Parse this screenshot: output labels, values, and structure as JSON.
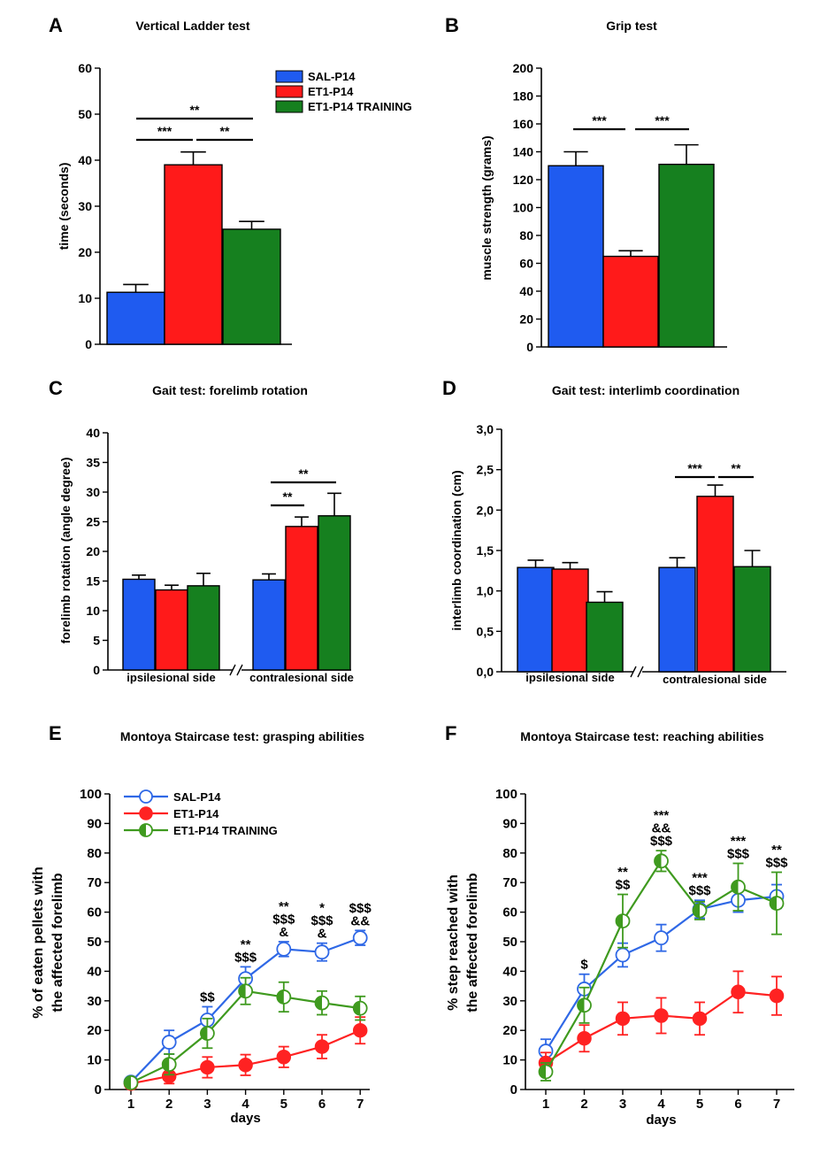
{
  "colors": {
    "sal": "#1f5bf0",
    "et1": "#ff1a1a",
    "training": "#16801f",
    "line_blue": "#2f68e6",
    "line_red": "#ff2222",
    "line_green": "#3f9a1f"
  },
  "legend_labels": [
    "SAL-P14",
    "ET1-P14",
    "ET1-P14 TRAINING"
  ],
  "chart_data": [
    {
      "id": "A",
      "panel_label": "A",
      "type": "bar",
      "title": "Vertical Ladder test",
      "ylabel": "time (seconds)",
      "ylim": [
        0,
        60
      ],
      "yticks": [
        "0",
        "10",
        "20",
        "30",
        "40",
        "50",
        "60"
      ],
      "series": [
        {
          "name": "SAL-P14",
          "values": [
            11.3
          ],
          "errors": [
            1.7
          ]
        },
        {
          "name": "ET1-P14",
          "values": [
            39
          ],
          "errors": [
            2.8
          ]
        },
        {
          "name": "ET1-P14 TRAINING",
          "values": [
            25
          ],
          "errors": [
            1.7
          ]
        }
      ],
      "significance": [
        {
          "between": [
            "SAL-P14",
            "ET1-P14"
          ],
          "label": "***"
        },
        {
          "between": [
            "ET1-P14",
            "ET1-P14 TRAINING"
          ],
          "label": "**"
        },
        {
          "between": [
            "SAL-P14",
            "ET1-P14 TRAINING"
          ],
          "label": "**"
        }
      ]
    },
    {
      "id": "B",
      "panel_label": "B",
      "type": "bar",
      "title": "Grip test",
      "ylabel": "muscle strength (grams)",
      "ylim": [
        0,
        200
      ],
      "yticks": [
        "0",
        "20",
        "40",
        "60",
        "80",
        "100",
        "120",
        "140",
        "160",
        "180",
        "200"
      ],
      "series": [
        {
          "name": "SAL-P14",
          "values": [
            130
          ],
          "errors": [
            10
          ]
        },
        {
          "name": "ET1-P14",
          "values": [
            65
          ],
          "errors": [
            4
          ]
        },
        {
          "name": "ET1-P14 TRAINING",
          "values": [
            131
          ],
          "errors": [
            14
          ]
        }
      ],
      "significance": [
        {
          "between": [
            "SAL-P14",
            "ET1-P14"
          ],
          "label": "***"
        },
        {
          "between": [
            "ET1-P14",
            "ET1-P14 TRAINING"
          ],
          "label": "***"
        }
      ]
    },
    {
      "id": "C",
      "panel_label": "C",
      "type": "bar",
      "title": "Gait test: forelimb rotation",
      "ylabel": "forelimb rotation (angle degree)",
      "ylim": [
        0,
        40
      ],
      "yticks": [
        "0",
        "5",
        "10",
        "15",
        "20",
        "25",
        "30",
        "35",
        "40"
      ],
      "categories": [
        "ipsilesional side",
        "contralesional side"
      ],
      "series": [
        {
          "name": "SAL-P14",
          "values": [
            15.3,
            15.2
          ],
          "errors": [
            0.7,
            1.0
          ]
        },
        {
          "name": "ET1-P14",
          "values": [
            13.5,
            24.2
          ],
          "errors": [
            0.8,
            1.6
          ]
        },
        {
          "name": "ET1-P14 TRAINING",
          "values": [
            14.2,
            26
          ],
          "errors": [
            2.1,
            3.8
          ]
        }
      ],
      "significance": [
        {
          "group": "contralesional side",
          "between": [
            "SAL-P14",
            "ET1-P14"
          ],
          "label": "**"
        },
        {
          "group": "contralesional side",
          "between": [
            "SAL-P14",
            "ET1-P14 TRAINING"
          ],
          "label": "**"
        }
      ]
    },
    {
      "id": "D",
      "panel_label": "D",
      "type": "bar",
      "title": "Gait test: interlimb coordination",
      "ylabel": "interlimb coordination (cm)",
      "ylim": [
        0,
        3
      ],
      "yticks": [
        "0,0",
        "0,5",
        "1,0",
        "1,5",
        "2,0",
        "2,5",
        "3,0"
      ],
      "categories": [
        "ipsilesional side",
        "contralesional side"
      ],
      "series": [
        {
          "name": "SAL-P14",
          "values": [
            1.29,
            1.29
          ],
          "errors": [
            0.09,
            0.12
          ]
        },
        {
          "name": "ET1-P14",
          "values": [
            1.27,
            2.17
          ],
          "errors": [
            0.08,
            0.14
          ]
        },
        {
          "name": "ET1-P14 TRAINING",
          "values": [
            0.86,
            1.3
          ],
          "errors": [
            0.13,
            0.2
          ]
        }
      ],
      "significance": [
        {
          "group": "contralesional side",
          "between": [
            "SAL-P14",
            "ET1-P14"
          ],
          "label": "***"
        },
        {
          "group": "contralesional side",
          "between": [
            "ET1-P14",
            "ET1-P14 TRAINING"
          ],
          "label": "**"
        }
      ]
    },
    {
      "id": "E",
      "panel_label": "E",
      "type": "line",
      "title": "Montoya Staircase test: grasping abilities",
      "xlabel": "days",
      "ylabel": "% of eaten pellets with the affected forelimb",
      "ylabel_lines": [
        "% of eaten pellets with",
        "the affected forelimb"
      ],
      "x": [
        1,
        2,
        3,
        4,
        5,
        6,
        7
      ],
      "xticks": [
        "1",
        "2",
        "3",
        "4",
        "5",
        "6",
        "7"
      ],
      "ylim": [
        0,
        100
      ],
      "yticks": [
        "0",
        "10",
        "20",
        "30",
        "40",
        "50",
        "60",
        "70",
        "80",
        "90",
        "100"
      ],
      "series": [
        {
          "name": "SAL-P14",
          "values": [
            2.5,
            16,
            23.5,
            37.5,
            47.5,
            46.5,
            51.3
          ],
          "errors": [
            1.0,
            4.0,
            4.5,
            4.0,
            2.5,
            3.0,
            2.5
          ]
        },
        {
          "name": "ET1-P14",
          "values": [
            2,
            4.5,
            7.5,
            8.3,
            11,
            14.5,
            20
          ],
          "errors": [
            1.0,
            2.5,
            3.5,
            3.5,
            3.5,
            4.0,
            4.5
          ]
        },
        {
          "name": "ET1-P14 TRAINING",
          "values": [
            2.3,
            8.5,
            19,
            33.3,
            31.3,
            29.3,
            27.5
          ],
          "errors": [
            1.0,
            3.5,
            5.0,
            4.5,
            5.0,
            4.0,
            4.0
          ]
        }
      ],
      "annotations": [
        {
          "x": 3,
          "lines": [
            "$$"
          ]
        },
        {
          "x": 4,
          "lines": [
            "**",
            "$$$"
          ]
        },
        {
          "x": 5,
          "lines": [
            "**",
            "$$$",
            "&"
          ]
        },
        {
          "x": 6,
          "lines": [
            "*",
            "$$$",
            "&"
          ]
        },
        {
          "x": 7,
          "lines": [
            "$$$",
            "&&"
          ]
        }
      ]
    },
    {
      "id": "F",
      "panel_label": "F",
      "type": "line",
      "title": "Montoya Staircase test: reaching abilities",
      "xlabel": "days",
      "ylabel": "% step reached with the affected forelimb",
      "ylabel_lines": [
        "% step reached with",
        "the affected forelimb"
      ],
      "x": [
        1,
        2,
        3,
        4,
        5,
        6,
        7
      ],
      "xticks": [
        "1",
        "2",
        "3",
        "4",
        "5",
        "6",
        "7"
      ],
      "ylim": [
        0,
        100
      ],
      "yticks": [
        "0",
        "10",
        "20",
        "30",
        "40",
        "50",
        "60",
        "70",
        "80",
        "90",
        "100"
      ],
      "series": [
        {
          "name": "SAL-P14",
          "values": [
            13,
            34,
            45.5,
            51.3,
            61,
            64,
            65.3
          ],
          "errors": [
            4.0,
            5.0,
            4.0,
            4.5,
            3.0,
            4.0,
            4.0
          ]
        },
        {
          "name": "ET1-P14",
          "values": [
            9,
            17.3,
            24,
            25,
            24,
            33,
            31.7
          ],
          "errors": [
            3.5,
            4.5,
            5.5,
            6.0,
            5.5,
            7.0,
            6.5
          ]
        },
        {
          "name": "ET1-P14 TRAINING",
          "values": [
            6,
            28.5,
            57,
            77.3,
            60.5,
            68.5,
            63
          ],
          "errors": [
            3.0,
            6.0,
            9.0,
            3.5,
            3.0,
            8.0,
            10.5
          ]
        }
      ],
      "annotations": [
        {
          "x": 2,
          "lines": [
            "$"
          ]
        },
        {
          "x": 3,
          "lines": [
            "**",
            "$$"
          ]
        },
        {
          "x": 4,
          "lines": [
            "***",
            "&&",
            "$$$"
          ]
        },
        {
          "x": 5,
          "lines": [
            "***",
            "$$$"
          ]
        },
        {
          "x": 6,
          "lines": [
            "***",
            "$$$"
          ]
        },
        {
          "x": 7,
          "lines": [
            "**",
            "$$$"
          ]
        }
      ]
    }
  ]
}
